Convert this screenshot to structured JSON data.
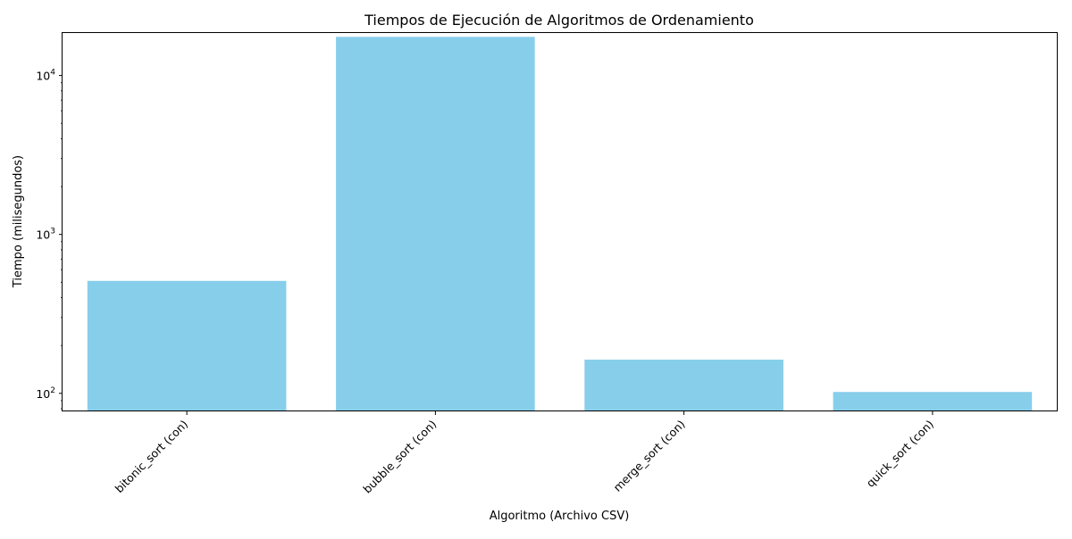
{
  "chart_data": {
    "type": "bar",
    "title": "Tiempos de Ejecución de Algoritmos de Ordenamiento",
    "xlabel": "Algoritmo (Archivo CSV)",
    "ylabel": "Tiempo (milisegundos)",
    "yscale": "log",
    "ylim": [
      78,
      18500
    ],
    "yticks": [
      {
        "value": 100,
        "base": "10",
        "exp": "2"
      },
      {
        "value": 1000,
        "base": "10",
        "exp": "3"
      },
      {
        "value": 10000,
        "base": "10",
        "exp": "4"
      }
    ],
    "categories": [
      "bitonic_sort (con)",
      "bubble_sort (con)",
      "merge_sort (con)",
      "quick_sort (con)"
    ],
    "values": [
      510,
      17500,
      163,
      102
    ],
    "grid": false,
    "bar_color": "#87CEEB"
  }
}
